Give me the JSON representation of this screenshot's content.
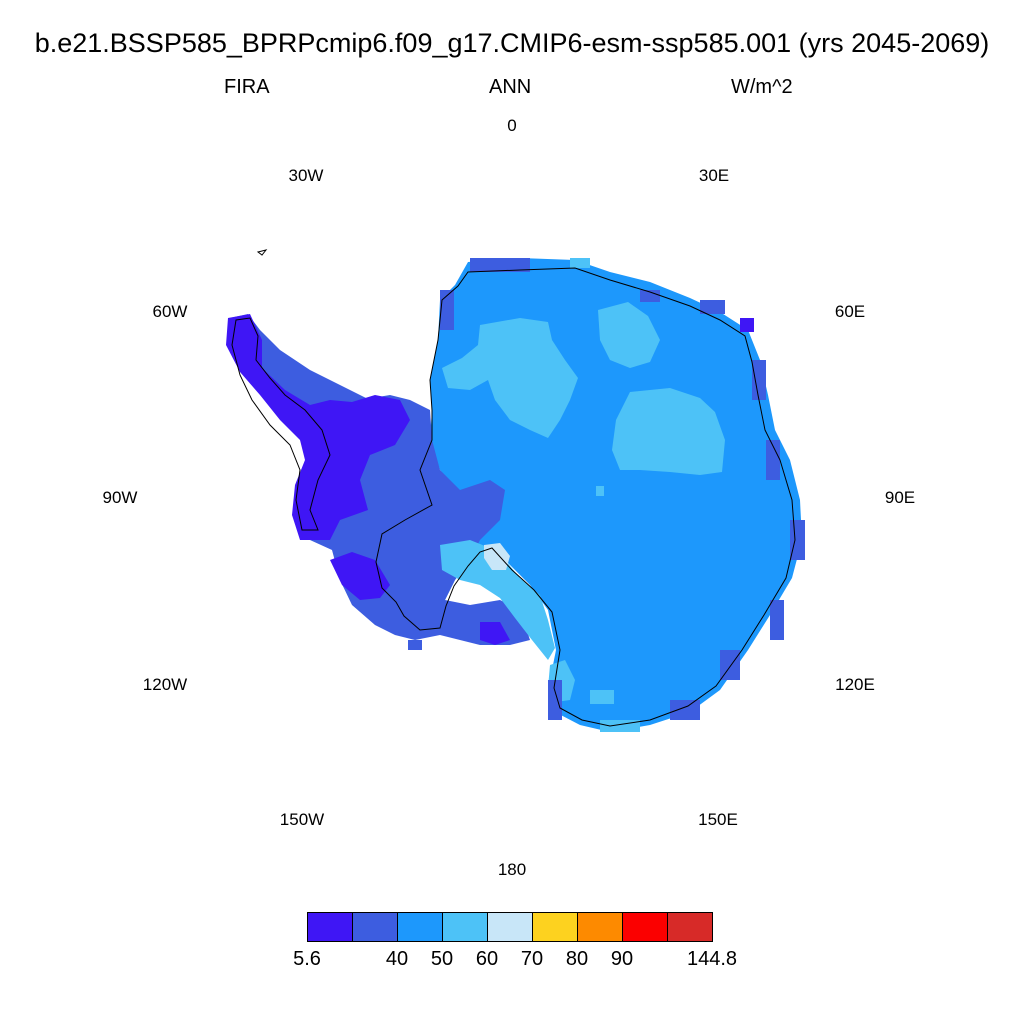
{
  "header": {
    "title": "b.e21.BSSP585_BPRPcmip6.f09_g17.CMIP6-esm-ssp585.001 (yrs 2045-2069)",
    "variable": "FIRA",
    "season": "ANN",
    "units": "W/m^2"
  },
  "map": {
    "projection": "south polar stereographic",
    "longitude_labels": [
      "0",
      "30E",
      "60E",
      "90E",
      "120E",
      "150E",
      "180",
      "150W",
      "120W",
      "90W",
      "60W",
      "30W"
    ],
    "colors": {
      "bin1": "#3f16f5",
      "bin2": "#3d5de0",
      "bin3": "#1d98fc",
      "bin4": "#4dc2f7",
      "bin5": "#c8e6f8",
      "coast": "#000000"
    }
  },
  "colorbar": {
    "colors": [
      "#3f16f5",
      "#3d5de0",
      "#1d98fc",
      "#4dc2f7",
      "#c8e6f8",
      "#fdd21f",
      "#fd8a00",
      "#fb0000",
      "#d72a28"
    ],
    "labels": [
      "5.6",
      "40",
      "50",
      "60",
      "70",
      "80",
      "90",
      "144.8"
    ]
  }
}
